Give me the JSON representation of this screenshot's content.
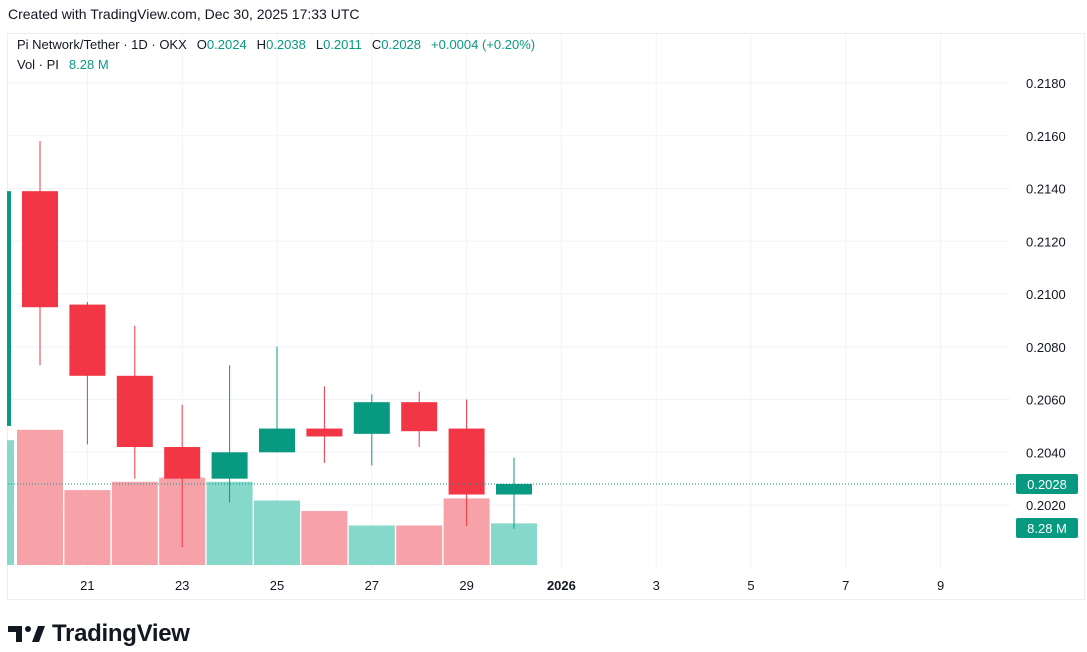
{
  "header": {
    "created_text": "Created with TradingView.com, Dec 30, 2025 17:33 UTC"
  },
  "legend": {
    "symbol": "Pi Network/Tether · 1D · OKX",
    "o_label": "O",
    "o_value": "0.2024",
    "h_label": "H",
    "h_value": "0.2038",
    "l_label": "L",
    "l_value": "0.2011",
    "c_label": "C",
    "c_value": "0.2028",
    "change": "+0.0004 (+0.20%)",
    "vol_label": "Vol · PI",
    "vol_value": "8.28 M"
  },
  "price_tag": "0.2028",
  "volume_tag": "8.28 M",
  "brand": {
    "name": "TradingView"
  },
  "colors": {
    "up": "#089981",
    "down": "#f23645",
    "up_vol": "#86d8cb",
    "down_vol": "#f7a1a8",
    "grid": "#f0f3fa",
    "text": "#131722"
  },
  "chart_data": {
    "type": "candlestick",
    "y_axis": {
      "ticks": [
        "0.2180",
        "0.2160",
        "0.2140",
        "0.2120",
        "0.2100",
        "0.2080",
        "0.2060",
        "0.2040",
        "0.2020"
      ],
      "range": [
        0.1995,
        0.2191
      ]
    },
    "x_axis": {
      "ticks": [
        "21",
        "23",
        "25",
        "27",
        "29",
        "2026",
        "3",
        "5",
        "7",
        "9"
      ]
    },
    "candles": [
      {
        "date": "Dec 20",
        "open": 0.2139,
        "high": 0.2158,
        "low": 0.2073,
        "close": 0.2095
      },
      {
        "date": "Dec 21",
        "open": 0.2096,
        "high": 0.2097,
        "low": 0.2043,
        "close": 0.2069
      },
      {
        "date": "Dec 22",
        "open": 0.2069,
        "high": 0.2088,
        "low": 0.203,
        "close": 0.2042
      },
      {
        "date": "Dec 23",
        "open": 0.2042,
        "high": 0.2058,
        "low": 0.2004,
        "close": 0.203
      },
      {
        "date": "Dec 24",
        "open": 0.203,
        "high": 0.2073,
        "low": 0.2021,
        "close": 0.204
      },
      {
        "date": "Dec 25",
        "open": 0.204,
        "high": 0.208,
        "low": 0.204,
        "close": 0.2049
      },
      {
        "date": "Dec 26",
        "open": 0.2049,
        "high": 0.2065,
        "low": 0.2036,
        "close": 0.2046
      },
      {
        "date": "Dec 27",
        "open": 0.2047,
        "high": 0.2062,
        "low": 0.2035,
        "close": 0.2059
      },
      {
        "date": "Dec 28",
        "open": 0.2059,
        "high": 0.2063,
        "low": 0.2042,
        "close": 0.2048
      },
      {
        "date": "Dec 29",
        "open": 0.2049,
        "high": 0.206,
        "low": 0.2012,
        "close": 0.2024
      },
      {
        "date": "Dec 30",
        "open": 0.2024,
        "high": 0.2038,
        "low": 0.2011,
        "close": 0.2028
      }
    ],
    "volume_relative": [
      0.65,
      0.36,
      0.4,
      0.42,
      0.4,
      0.31,
      0.26,
      0.19,
      0.19,
      0.32,
      0.2
    ],
    "volume_prev_fraction": 0.6,
    "last_price": 0.2028
  }
}
